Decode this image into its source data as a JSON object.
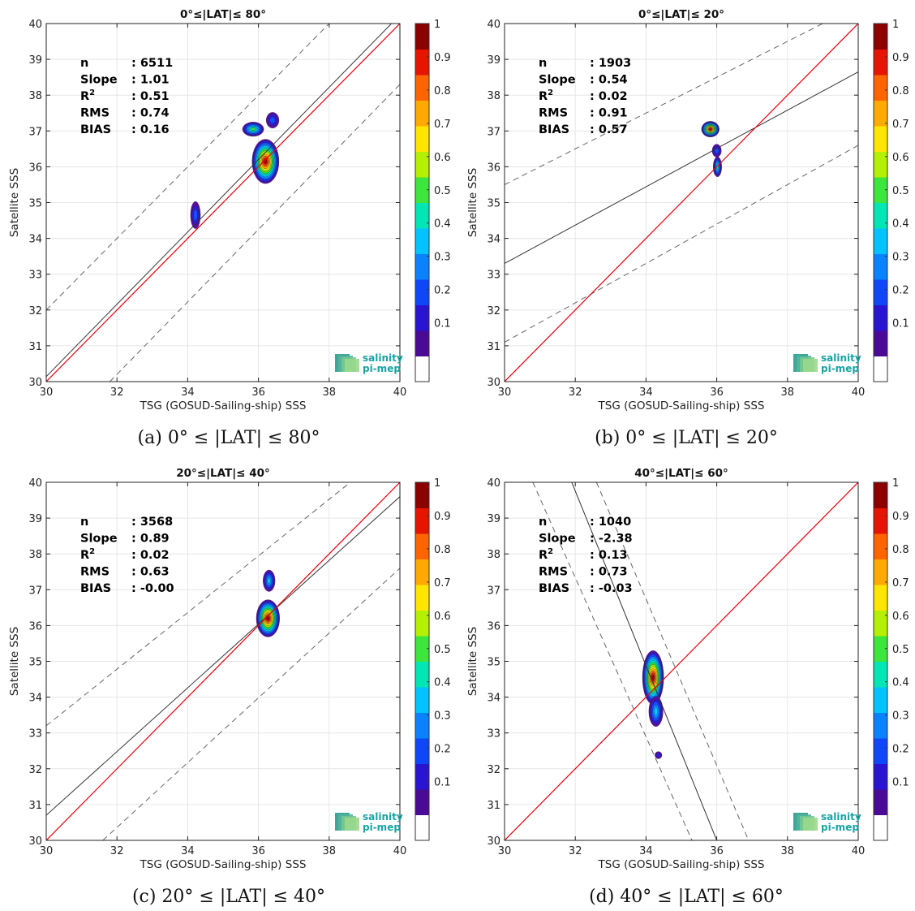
{
  "figure": {
    "xlabel": "TSG (GOSUD-Sailing-ship) SSS",
    "ylabel": "Satellite SSS",
    "xlim": [
      30,
      40
    ],
    "ylim": [
      30,
      40
    ],
    "xticks": [
      "30",
      "32",
      "34",
      "36",
      "38",
      "40"
    ],
    "yticks": [
      "30",
      "31",
      "32",
      "33",
      "34",
      "35",
      "36",
      "37",
      "38",
      "39",
      "40"
    ],
    "colorbar_ticks": [
      "0.1",
      "0.2",
      "0.3",
      "0.4",
      "0.5",
      "0.6",
      "0.7",
      "0.8",
      "0.9",
      "1"
    ],
    "logo": {
      "line1": "salinity",
      "line2": "pi-mep"
    },
    "stat_labels": [
      "n",
      "Slope",
      "R2",
      "RMS",
      "BIAS"
    ],
    "colors": {
      "identity_line": "#e8000b",
      "fit_line": "#333333",
      "grid": "#e6e6e6"
    }
  },
  "panels": [
    {
      "title": "0°≤|LAT|≤ 80°",
      "caption": "(a) 0° ≤ |LAT| ≤ 80°",
      "stats": {
        "n": "6511",
        "slope": "1.01",
        "r2": "0.51",
        "rms": "0.74",
        "bias": "0.16"
      }
    },
    {
      "title": "0°≤|LAT|≤ 20°",
      "caption": "(b) 0° ≤ |LAT| ≤ 20°",
      "stats": {
        "n": "1903",
        "slope": "0.54",
        "r2": "0.02",
        "rms": "0.91",
        "bias": "0.57"
      }
    },
    {
      "title": "20°≤|LAT|≤ 40°",
      "caption": "(c) 20° ≤ |LAT| ≤ 40°",
      "stats": {
        "n": "3568",
        "slope": "0.89",
        "r2": "0.02",
        "rms": "0.63",
        "bias": "-0.00"
      }
    },
    {
      "title": "40°≤|LAT|≤ 60°",
      "caption": "(d) 40° ≤ |LAT| ≤ 60°",
      "stats": {
        "n": "1040",
        "slope": "-2.38",
        "r2": "0.13",
        "rms": "0.73",
        "bias": "-0.03"
      }
    }
  ],
  "chart_data": [
    {
      "type": "contour",
      "title": "0°≤|LAT|≤ 80°",
      "xlabel": "TSG (GOSUD-Sailing-ship) SSS",
      "ylabel": "Satellite SSS",
      "xlim": [
        30,
        40
      ],
      "ylim": [
        30,
        40
      ],
      "colorbar_range": [
        0,
        1
      ],
      "lines": {
        "identity": [
          [
            30,
            30
          ],
          [
            40,
            40
          ]
        ],
        "fit": [
          [
            30,
            30.14
          ],
          [
            40,
            40.24
          ]
        ],
        "lower": [
          [
            31.8,
            30
          ],
          [
            40,
            38.3
          ]
        ],
        "upper": [
          [
            30,
            32.0
          ],
          [
            38.0,
            40
          ]
        ]
      },
      "blobs": [
        {
          "x": 36.2,
          "y": 36.15,
          "rx": 0.38,
          "ry": 0.62,
          "peak": 1.0
        },
        {
          "x": 35.85,
          "y": 37.05,
          "rx": 0.3,
          "ry": 0.2,
          "peak": 0.55
        },
        {
          "x": 36.4,
          "y": 37.3,
          "rx": 0.18,
          "ry": 0.22,
          "peak": 0.2
        },
        {
          "x": 34.22,
          "y": 34.65,
          "rx": 0.14,
          "ry": 0.38,
          "peak": 0.2
        }
      ]
    },
    {
      "type": "contour",
      "title": "0°≤|LAT|≤ 20°",
      "xlabel": "TSG (GOSUD-Sailing-ship) SSS",
      "ylabel": "Satellite SSS",
      "xlim": [
        30,
        40
      ],
      "ylim": [
        30,
        40
      ],
      "colorbar_range": [
        0,
        1
      ],
      "lines": {
        "identity": [
          [
            30,
            30
          ],
          [
            40,
            40
          ]
        ],
        "fit": [
          [
            30,
            33.3
          ],
          [
            40,
            38.65
          ]
        ],
        "lower": [
          [
            30,
            31.1
          ],
          [
            40,
            36.6
          ]
        ],
        "upper": [
          [
            30,
            35.5
          ],
          [
            39.0,
            40
          ]
        ]
      },
      "blobs": [
        {
          "x": 35.82,
          "y": 37.05,
          "rx": 0.25,
          "ry": 0.22,
          "peak": 1.0
        },
        {
          "x": 36.02,
          "y": 36.0,
          "rx": 0.12,
          "ry": 0.28,
          "peak": 0.45
        },
        {
          "x": 36.0,
          "y": 36.45,
          "rx": 0.13,
          "ry": 0.18,
          "peak": 0.2
        }
      ]
    },
    {
      "type": "contour",
      "title": "20°≤|LAT|≤ 40°",
      "xlabel": "TSG (GOSUD-Sailing-ship) SSS",
      "ylabel": "Satellite SSS",
      "xlim": [
        30,
        40
      ],
      "ylim": [
        30,
        40
      ],
      "colorbar_range": [
        0,
        1
      ],
      "lines": {
        "identity": [
          [
            30,
            30
          ],
          [
            40,
            40
          ]
        ],
        "fit": [
          [
            30,
            30.7
          ],
          [
            40,
            39.6
          ]
        ],
        "lower": [
          [
            31.6,
            30
          ],
          [
            40,
            37.6
          ]
        ],
        "upper": [
          [
            30,
            33.2
          ],
          [
            38.6,
            40
          ]
        ]
      },
      "blobs": [
        {
          "x": 36.27,
          "y": 36.2,
          "rx": 0.33,
          "ry": 0.52,
          "peak": 1.0
        },
        {
          "x": 36.3,
          "y": 37.25,
          "rx": 0.17,
          "ry": 0.3,
          "peak": 0.4
        }
      ]
    },
    {
      "type": "contour",
      "title": "40°≤|LAT|≤ 60°",
      "xlabel": "TSG (GOSUD-Sailing-ship) SSS",
      "ylabel": "Satellite SSS",
      "xlim": [
        30,
        40
      ],
      "ylim": [
        30,
        40
      ],
      "colorbar_range": [
        0,
        1
      ],
      "lines": {
        "identity": [
          [
            30,
            30
          ],
          [
            40,
            40
          ]
        ],
        "fit": [
          [
            31.9,
            40
          ],
          [
            36.0,
            30
          ]
        ],
        "lower": [
          [
            30.8,
            40
          ],
          [
            35.3,
            30
          ]
        ],
        "upper": [
          [
            32.6,
            40
          ],
          [
            36.9,
            30
          ]
        ]
      },
      "blobs": [
        {
          "x": 34.2,
          "y": 34.55,
          "rx": 0.3,
          "ry": 0.75,
          "peak": 1.0
        },
        {
          "x": 34.28,
          "y": 33.6,
          "rx": 0.2,
          "ry": 0.42,
          "peak": 0.4
        },
        {
          "x": 34.35,
          "y": 32.38,
          "rx": 0.1,
          "ry": 0.1,
          "peak": 0.15
        }
      ]
    }
  ]
}
